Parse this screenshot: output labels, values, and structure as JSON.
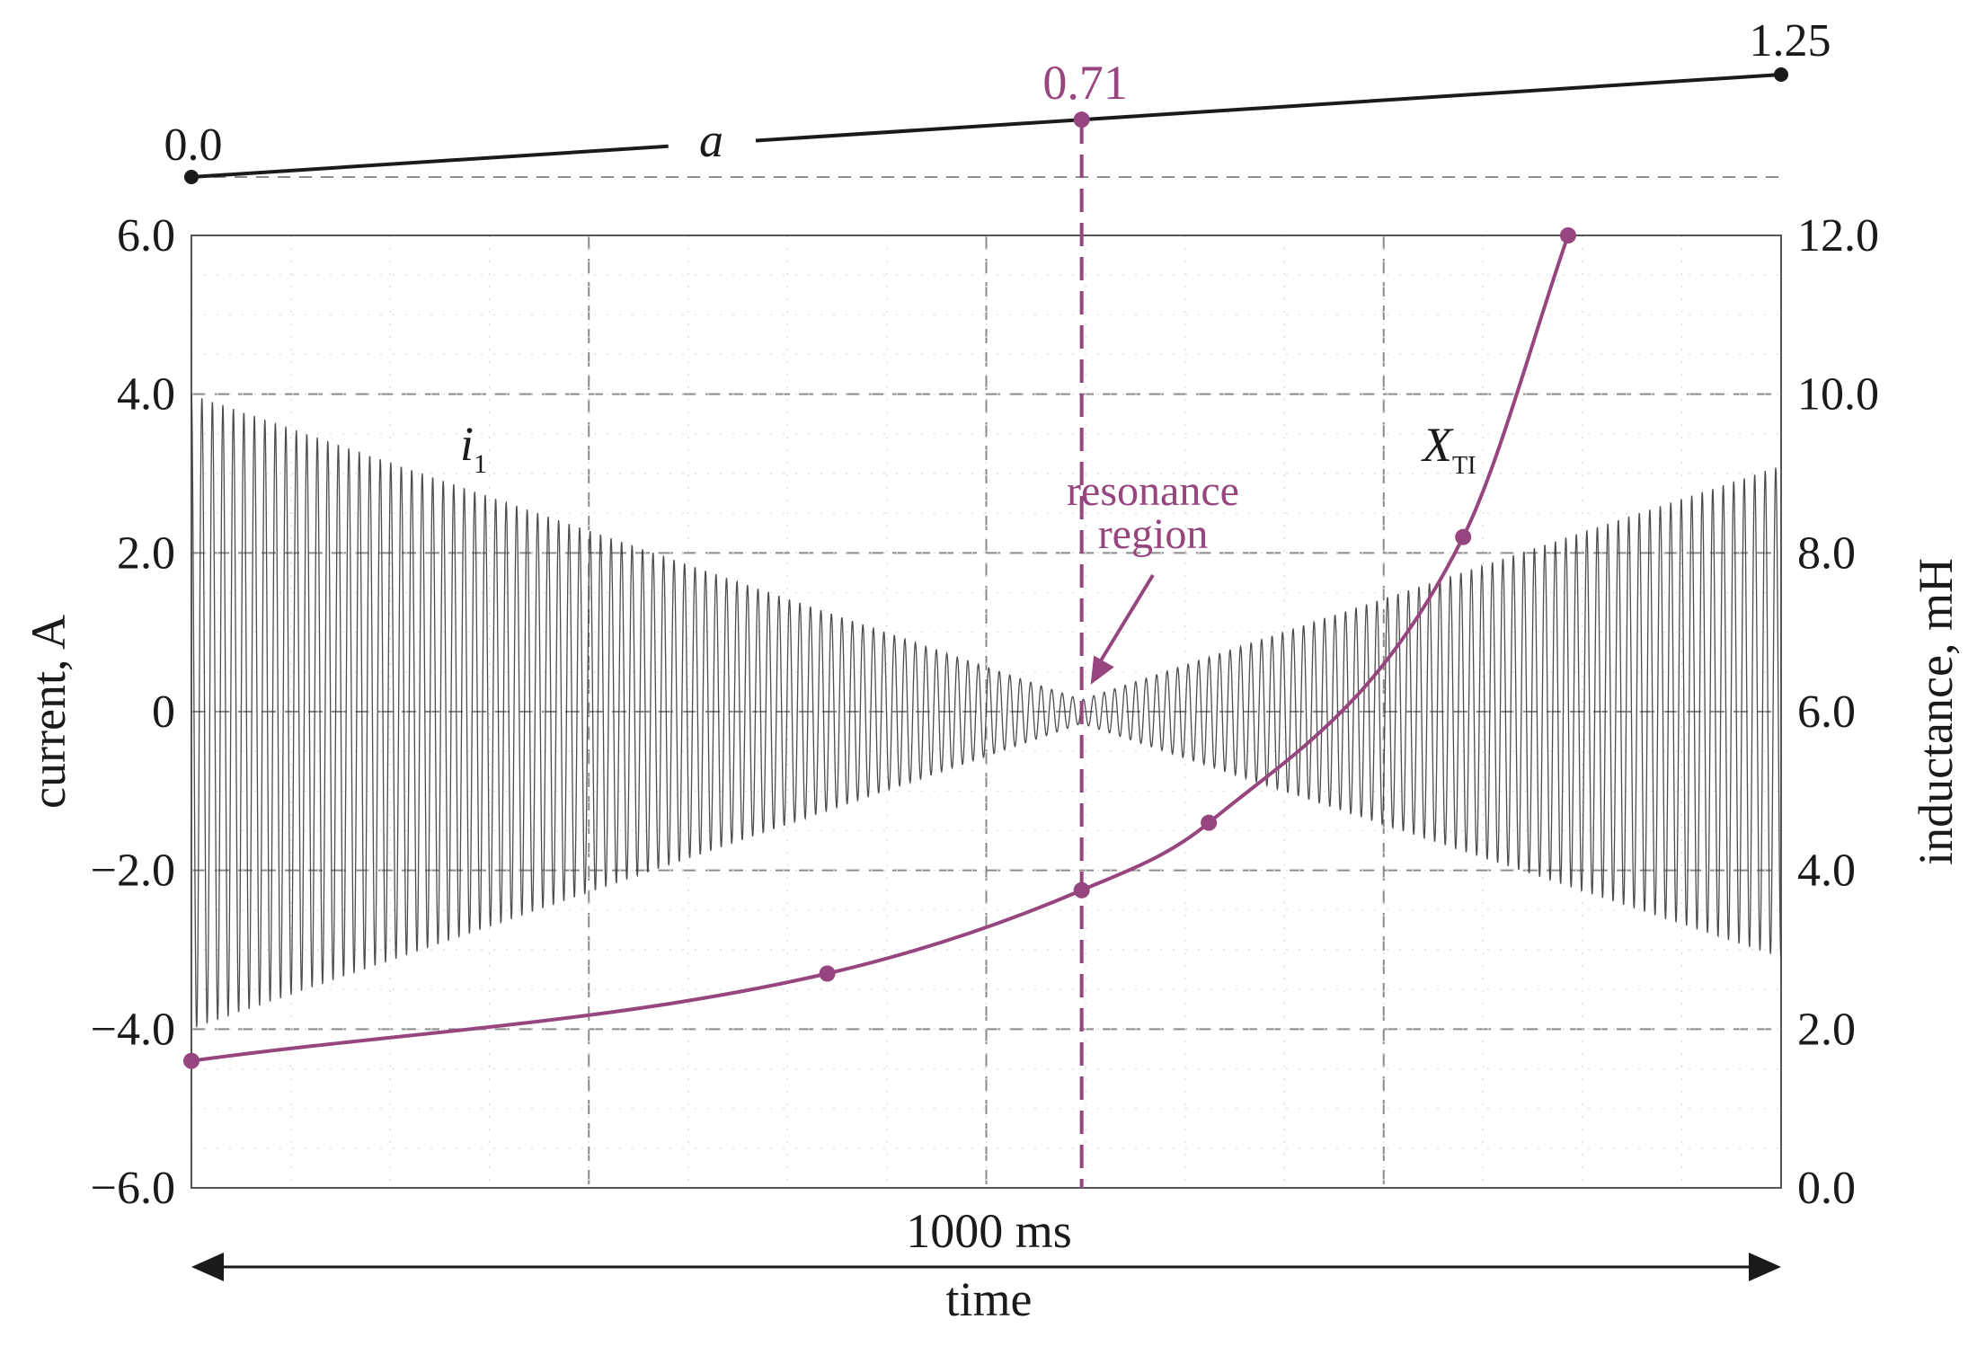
{
  "colors": {
    "accent": "#96457e",
    "ink": "#1a1a1a",
    "grid": "#8a8a8a",
    "signal": "#3a3a3a"
  },
  "chart_data": {
    "type": "line",
    "title": "",
    "xlabel": "time",
    "x_span_label": "1000 ms",
    "x_range": [
      0,
      1000
    ],
    "y_left": {
      "label": "current, A",
      "range": [
        -6.0,
        6.0
      ],
      "ticks": [
        "6.0",
        "4.0",
        "2.0",
        "0",
        "−2.0",
        "−4.0",
        "−6.0"
      ]
    },
    "y_right": {
      "label": "inductance, mH",
      "range": [
        0.0,
        12.0
      ],
      "ticks": [
        "12.0",
        "10.0",
        "8.0",
        "6.0",
        "4.0",
        "2.0",
        "0.0"
      ]
    },
    "grid": {
      "vertical_dashed_at_ms": [
        250,
        500,
        750
      ],
      "horizontal_dashed": true
    },
    "a_axis": {
      "label": "a",
      "start": {
        "value": "0.0",
        "ms": 0
      },
      "end": {
        "value": "1.25",
        "ms": 1000
      },
      "marker": {
        "value": "0.71",
        "ms": 560
      }
    },
    "series": [
      {
        "name": "i",
        "subscript": "1",
        "axis": "left",
        "style": "oscillation-envelope",
        "amplitude_envelope": [
          {
            "ms": 0,
            "amplitude": 4.0
          },
          {
            "ms": 560,
            "amplitude": 0.15
          },
          {
            "ms": 1000,
            "amplitude": 3.1
          }
        ]
      },
      {
        "name": "X",
        "subscript": "TI",
        "axis": "right",
        "style": "line-with-markers",
        "points": [
          {
            "ms": 0,
            "value": 1.6
          },
          {
            "ms": 400,
            "value": 2.7
          },
          {
            "ms": 560,
            "value": 3.75
          },
          {
            "ms": 640,
            "value": 4.6
          },
          {
            "ms": 800,
            "value": 8.2
          },
          {
            "ms": 866,
            "value": 12.0
          }
        ]
      }
    ],
    "annotations": {
      "resonance": {
        "line1": "resonance",
        "line2": "region",
        "at_ms": 560
      }
    }
  }
}
